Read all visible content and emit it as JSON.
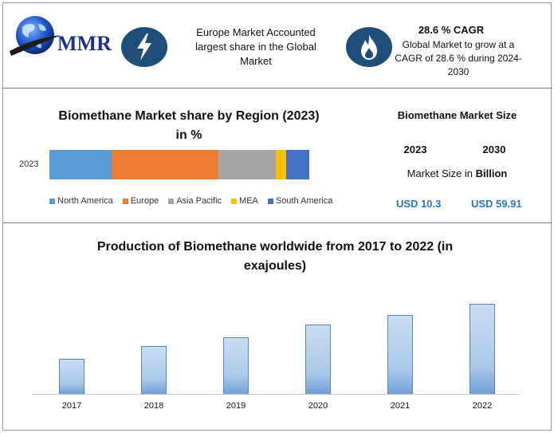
{
  "logo": {
    "text": "MMR"
  },
  "header": {
    "europe_text": "Europe Market Accounted largest share in the Global Market",
    "cagr_title": "28.6 % CAGR",
    "cagr_text": "Global Market to grow at a CAGR of 28.6 % during 2024-2030",
    "icons": [
      "lightning-icon",
      "flame-icon"
    ],
    "icon_bg_color": "#1f4e79"
  },
  "market_size": {
    "title": "Biomethane Market Size",
    "year_a": "2023",
    "year_b": "2030",
    "unit_prefix": "Market Size in ",
    "unit_bold": "Billion",
    "value_a": "USD 10.3",
    "value_b": "USD 59.91",
    "value_color": "#2e75b6"
  },
  "chart_data": [
    {
      "type": "bar",
      "orientation": "horizontal-stacked",
      "title": "Biomethane Market share by Region (2023)",
      "subtitle": "in %",
      "categories": [
        "2023"
      ],
      "series": [
        {
          "name": "North America",
          "color": "#5b9bd5",
          "values": [
            24
          ]
        },
        {
          "name": "Europe",
          "color": "#ed7d31",
          "values": [
            41
          ]
        },
        {
          "name": "Asia Pacific",
          "color": "#a5a5a5",
          "values": [
            22
          ]
        },
        {
          "name": "MEA",
          "color": "#ffc000",
          "values": [
            4
          ]
        },
        {
          "name": "South America",
          "color": "#4472c4",
          "values": [
            9
          ]
        }
      ],
      "legend": "bottom",
      "grid": false
    },
    {
      "type": "bar",
      "title": "Production of Biomethane worldwide from 2017 to 2022 (in",
      "subtitle": "exajoules)",
      "categories": [
        "2017",
        "2018",
        "2019",
        "2020",
        "2021",
        "2022"
      ],
      "values": [
        0.098,
        0.133,
        0.156,
        0.191,
        0.219,
        0.249
      ],
      "ylim": [
        0,
        0.28
      ],
      "grid": false,
      "bar_color": "#a9c8ea"
    }
  ]
}
